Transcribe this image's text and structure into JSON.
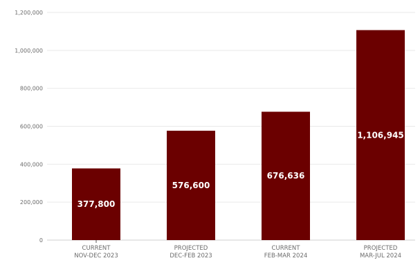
{
  "chart_data": {
    "type": "bar",
    "categories": [
      [
        "CURRENT",
        "NOV-DEC 2023"
      ],
      [
        "PROJECTED",
        "DEC-FEB 2023"
      ],
      [
        "CURRENT",
        "FEB-MAR 2024"
      ],
      [
        "PROJECTED",
        "MAR-JUL 2024"
      ]
    ],
    "values": [
      377800,
      576600,
      676636,
      1106945
    ],
    "data_labels": [
      "377,800",
      "576,600",
      "676,636",
      "1,106,945"
    ],
    "y_ticks": [
      0,
      200000,
      400000,
      600000,
      800000,
      1000000,
      1200000
    ],
    "y_tick_labels": [
      "0",
      "200,000",
      "400,000",
      "600,000",
      "800,000",
      "1,000,000",
      "1,200,000"
    ],
    "ylim": [
      0,
      1200000
    ],
    "title": "",
    "xlabel": "",
    "ylabel": "",
    "grid": true,
    "bar_color": "#6b0000",
    "label_color": "#ffffff",
    "grid_color": "#e9e9e9",
    "axis_text_color": "#6b6b6b"
  }
}
